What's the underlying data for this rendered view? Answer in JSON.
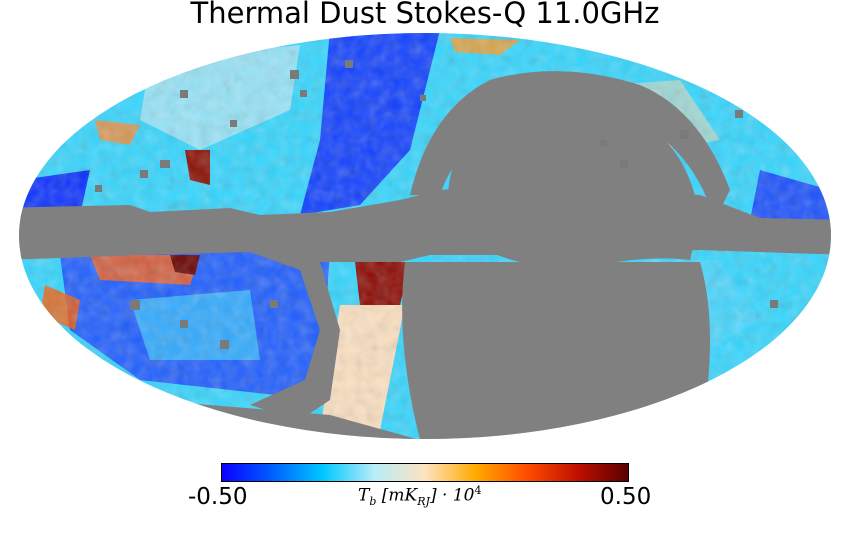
{
  "title": "Thermal Dust Stokes-Q 11.0GHz",
  "projection": "mollweide",
  "masked_color": "#808080",
  "colormap": [
    "#0a00ff",
    "#0060ff",
    "#00c8ff",
    "#b8ecf8",
    "#fde3c0",
    "#ffaa00",
    "#ff4d00",
    "#c01000",
    "#5a0000"
  ],
  "colorbar": {
    "min_label": "-0.50",
    "max_label": "0.50",
    "unit_parts": {
      "base": "T",
      "base_sub": "b",
      "bracket_open": " [mK",
      "bracket_sub": "RJ",
      "bracket_close": "] · 10",
      "exp": "4"
    }
  }
}
